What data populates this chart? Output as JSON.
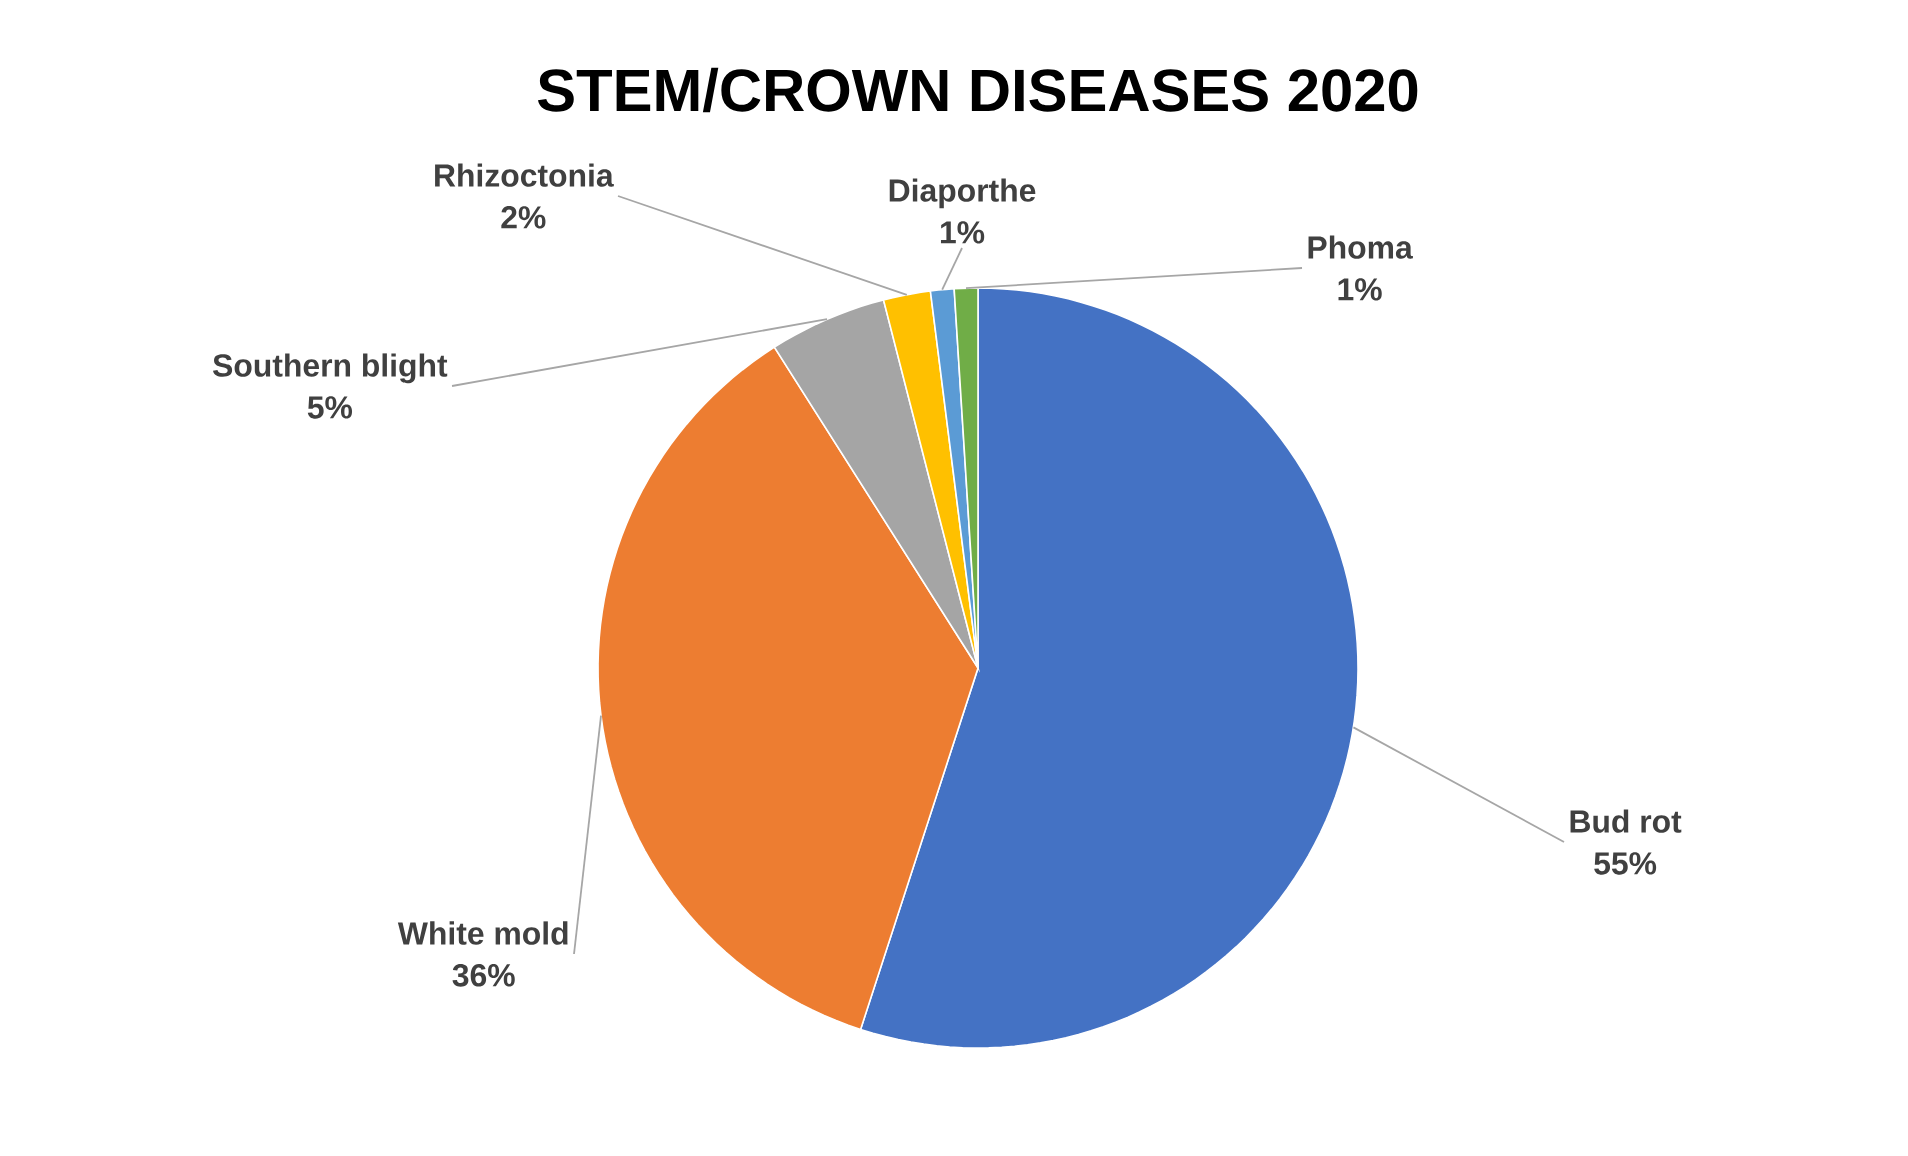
{
  "chart_data": {
    "type": "pie",
    "title": "STEM/CROWN DISEASES 2020",
    "categories": [
      "Bud rot",
      "White mold",
      "Southern blight",
      "Rhizoctonia",
      "Diaporthe",
      "Phoma"
    ],
    "values": [
      55,
      36,
      5,
      2,
      1,
      1
    ],
    "value_labels": [
      "55%",
      "36%",
      "5%",
      "2%",
      "1%",
      "1%"
    ],
    "colors": [
      "#4472c4",
      "#ed7d31",
      "#a5a5a5",
      "#ffc000",
      "#5b9bd5",
      "#70ad47"
    ]
  }
}
